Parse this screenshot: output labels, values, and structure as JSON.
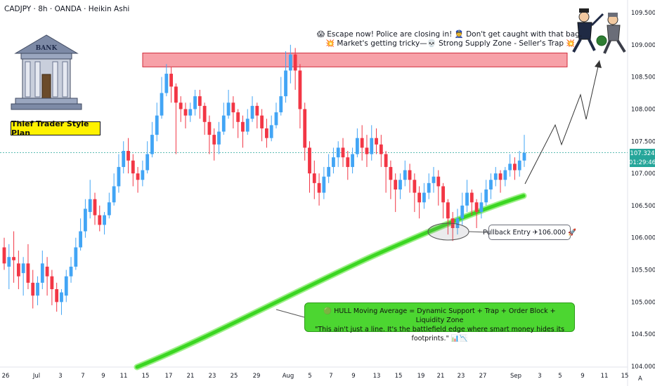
{
  "header": {
    "title": "CADJPY · 8h · OANDA · Heikin Ashi"
  },
  "annotations": {
    "plan_label": "Thief Trader Style Plan",
    "warning_line1": "😱 Escape now! Police are closing in! 👮 Don't get caught with that bag.",
    "warning_line2": "💥 Market's getting tricky—💀 Strong Supply Zone - Seller's Trap 💥",
    "pullback": "Pullback Entry ✈106.000 🚀",
    "hull_line1": "🟢 HULL Moving Average = Dynamic Support + Trap + Order Block + Liquidity Zone",
    "hull_line2": "\"This ain't just a line. It's the battlefield edge where smart money hides its footprints.\" 📊📉",
    "bank_sign": "BANK"
  },
  "price_badge": {
    "price": "107.324",
    "countdown": "01:29:46"
  },
  "colors": {
    "up": "#42a5f5",
    "down": "#f23645",
    "hull": "#3bd622",
    "zone_fill": "#f7a1a8",
    "price_line": "#26a69a"
  },
  "chart_data": {
    "type": "candlestick",
    "style": "Heikin Ashi",
    "symbol": "CADJPY",
    "interval": "8h",
    "source": "OANDA",
    "ylim": [
      104.0,
      109.5
    ],
    "y_ticks": [
      "109.500",
      "109.000",
      "108.500",
      "108.000",
      "107.500",
      "107.000",
      "106.500",
      "106.000",
      "105.500",
      "105.000",
      "104.500",
      "104.000"
    ],
    "x_ticks": [
      "26",
      "Jul",
      "3",
      "7",
      "9",
      "11",
      "15",
      "17",
      "21",
      "23",
      "25",
      "29",
      "Aug",
      "5",
      "7",
      "9",
      "13",
      "15",
      "19",
      "21",
      "23",
      "27",
      "Sep",
      "3",
      "5",
      "9",
      "11",
      "15"
    ],
    "last_price": 107.324,
    "supply_zone": [
      108.7,
      108.85
    ],
    "pullback_entry": 106.0,
    "candles": [
      [
        105.85,
        105.6,
        106.0,
        105.5
      ],
      [
        105.55,
        105.7,
        105.9,
        105.2
      ],
      [
        105.7,
        105.65,
        106.1,
        105.3
      ],
      [
        105.6,
        105.4,
        105.8,
        105.2
      ],
      [
        105.45,
        105.6,
        105.7,
        105.1
      ],
      [
        105.6,
        105.3,
        105.9,
        105.2
      ],
      [
        105.3,
        105.1,
        105.5,
        104.9
      ],
      [
        105.1,
        105.3,
        105.4,
        104.95
      ],
      [
        105.3,
        105.6,
        105.8,
        105.2
      ],
      [
        105.55,
        105.4,
        105.7,
        105.1
      ],
      [
        105.4,
        105.2,
        105.5,
        104.95
      ],
      [
        105.2,
        105.0,
        105.3,
        104.85
      ],
      [
        105.0,
        105.15,
        105.2,
        104.8
      ],
      [
        105.1,
        105.4,
        105.5,
        105.0
      ],
      [
        105.4,
        105.55,
        105.7,
        105.3
      ],
      [
        105.55,
        105.85,
        106.0,
        105.5
      ],
      [
        105.85,
        106.1,
        106.3,
        105.8
      ],
      [
        106.1,
        106.45,
        106.6,
        106.0
      ],
      [
        106.4,
        106.6,
        106.9,
        106.3
      ],
      [
        106.6,
        106.35,
        106.7,
        106.2
      ],
      [
        106.35,
        106.2,
        106.5,
        106.1
      ],
      [
        106.2,
        106.35,
        106.4,
        106.05
      ],
      [
        106.35,
        106.55,
        106.7,
        106.3
      ],
      [
        106.55,
        106.8,
        107.0,
        106.5
      ],
      [
        106.8,
        107.1,
        107.3,
        106.7
      ],
      [
        107.1,
        107.35,
        107.5,
        107.0
      ],
      [
        107.35,
        107.2,
        107.55,
        107.0
      ],
      [
        107.2,
        107.0,
        107.3,
        106.8
      ],
      [
        107.0,
        106.9,
        107.1,
        106.7
      ],
      [
        106.9,
        107.05,
        107.2,
        106.8
      ],
      [
        107.05,
        107.3,
        107.5,
        107.0
      ],
      [
        107.3,
        107.6,
        107.8,
        107.25
      ],
      [
        107.6,
        107.9,
        108.1,
        107.5
      ],
      [
        107.9,
        108.25,
        108.5,
        107.85
      ],
      [
        108.25,
        108.55,
        108.7,
        108.2
      ],
      [
        108.55,
        108.35,
        108.65,
        108.1
      ],
      [
        108.35,
        108.1,
        108.4,
        107.3
      ],
      [
        108.1,
        108.0,
        108.2,
        107.8
      ],
      [
        108.0,
        107.9,
        108.1,
        107.7
      ],
      [
        107.9,
        108.0,
        108.1,
        107.8
      ],
      [
        108.0,
        108.2,
        108.3,
        107.9
      ],
      [
        108.2,
        108.05,
        108.3,
        107.85
      ],
      [
        108.05,
        107.8,
        108.1,
        107.6
      ],
      [
        107.8,
        107.6,
        107.9,
        107.3
      ],
      [
        107.6,
        107.45,
        107.7,
        107.2
      ],
      [
        107.45,
        107.65,
        107.8,
        107.3
      ],
      [
        107.65,
        107.9,
        108.1,
        107.6
      ],
      [
        107.9,
        108.1,
        108.3,
        107.85
      ],
      [
        108.1,
        107.95,
        108.2,
        107.7
      ],
      [
        107.95,
        107.8,
        108.0,
        107.55
      ],
      [
        107.8,
        107.65,
        107.9,
        107.4
      ],
      [
        107.65,
        107.85,
        108.0,
        107.6
      ],
      [
        107.85,
        108.05,
        108.2,
        107.8
      ],
      [
        108.05,
        107.9,
        108.1,
        107.7
      ],
      [
        107.9,
        107.7,
        108.0,
        107.5
      ],
      [
        107.7,
        107.55,
        107.85,
        107.4
      ],
      [
        107.55,
        107.75,
        107.9,
        107.5
      ],
      [
        107.75,
        107.95,
        108.1,
        107.7
      ],
      [
        107.95,
        108.2,
        108.5,
        107.9
      ],
      [
        108.2,
        108.6,
        108.9,
        108.1
      ],
      [
        108.6,
        108.85,
        109.0,
        108.4
      ],
      [
        108.85,
        108.6,
        108.95,
        108.3
      ],
      [
        108.6,
        108.0,
        108.7,
        107.7
      ],
      [
        108.0,
        107.4,
        108.1,
        107.2
      ],
      [
        107.4,
        107.0,
        107.5,
        106.7
      ],
      [
        107.0,
        106.85,
        107.2,
        106.6
      ],
      [
        106.85,
        106.7,
        107.0,
        106.5
      ],
      [
        106.7,
        106.95,
        107.1,
        106.6
      ],
      [
        106.95,
        107.1,
        107.3,
        106.85
      ],
      [
        107.1,
        107.25,
        107.4,
        107.0
      ],
      [
        107.25,
        107.4,
        107.5,
        107.1
      ],
      [
        107.4,
        107.25,
        107.55,
        107.1
      ],
      [
        107.25,
        107.1,
        107.35,
        106.9
      ],
      [
        107.1,
        107.3,
        107.4,
        107.0
      ],
      [
        107.3,
        107.55,
        107.7,
        107.25
      ],
      [
        107.55,
        107.4,
        107.75,
        107.2
      ],
      [
        107.4,
        107.3,
        107.6,
        107.1
      ],
      [
        107.3,
        107.55,
        107.75,
        107.2
      ],
      [
        107.55,
        107.45,
        107.7,
        107.3
      ],
      [
        107.45,
        107.3,
        107.6,
        107.1
      ],
      [
        107.3,
        107.1,
        107.35,
        106.7
      ],
      [
        107.1,
        106.9,
        107.2,
        106.6
      ],
      [
        106.9,
        106.75,
        107.0,
        106.4
      ],
      [
        106.75,
        106.9,
        107.0,
        106.6
      ],
      [
        106.9,
        107.05,
        107.2,
        106.8
      ],
      [
        107.05,
        106.9,
        107.15,
        106.7
      ],
      [
        106.9,
        106.7,
        107.0,
        106.4
      ],
      [
        106.7,
        106.55,
        106.8,
        106.3
      ],
      [
        106.55,
        106.7,
        106.85,
        106.45
      ],
      [
        106.7,
        106.85,
        107.0,
        106.6
      ],
      [
        106.85,
        106.95,
        107.1,
        106.7
      ],
      [
        106.95,
        106.8,
        107.05,
        106.5
      ],
      [
        106.8,
        106.55,
        106.85,
        106.3
      ],
      [
        106.55,
        106.3,
        106.6,
        106.05
      ],
      [
        106.3,
        106.15,
        106.4,
        105.95
      ],
      [
        106.15,
        106.3,
        106.45,
        106.05
      ],
      [
        106.3,
        106.5,
        106.7,
        106.2
      ],
      [
        106.5,
        106.7,
        106.9,
        106.4
      ],
      [
        106.7,
        106.55,
        106.75,
        106.35
      ],
      [
        106.55,
        106.4,
        106.6,
        106.15
      ],
      [
        106.4,
        106.55,
        106.7,
        106.3
      ],
      [
        106.55,
        106.75,
        106.9,
        106.5
      ],
      [
        106.75,
        106.9,
        107.0,
        106.6
      ],
      [
        106.9,
        107.0,
        107.1,
        106.8
      ],
      [
        107.0,
        106.9,
        107.05,
        106.7
      ],
      [
        106.9,
        107.05,
        107.1,
        106.8
      ],
      [
        107.05,
        107.15,
        107.3,
        106.95
      ],
      [
        107.15,
        107.05,
        107.25,
        106.9
      ],
      [
        107.05,
        107.2,
        107.35,
        106.95
      ],
      [
        107.2,
        107.32,
        107.6,
        107.1
      ]
    ]
  }
}
